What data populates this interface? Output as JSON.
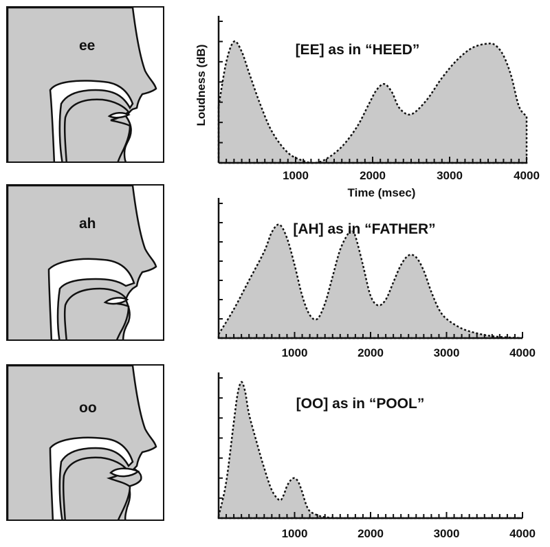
{
  "panels": [
    {
      "vowel": "ee",
      "title": "[EE] as in “HEED”"
    },
    {
      "vowel": "ah",
      "title": "[AH] as in “FATHER”"
    },
    {
      "vowel": "oo",
      "title": "[OO] as in “POOL”"
    }
  ],
  "colors": {
    "fill": "#c9c9c9",
    "stroke": "#111111"
  },
  "chart_data": [
    {
      "type": "area",
      "title": "[EE] as in “HEED”",
      "xlabel": "Time (msec)",
      "ylabel": "Loudness (dB)",
      "xticks": [
        "1000",
        "2000",
        "3000",
        "4000"
      ],
      "xlim": [
        0,
        4000
      ],
      "ylim": [
        0,
        7
      ],
      "x": [
        0,
        100,
        200,
        300,
        400,
        550,
        700,
        900,
        1100,
        1250,
        1400,
        1600,
        1800,
        1950,
        2050,
        2150,
        2250,
        2350,
        2500,
        2700,
        2900,
        3100,
        3300,
        3500,
        3600,
        3700,
        3800,
        3900,
        4000
      ],
      "values": [
        2.8,
        5.0,
        6.0,
        5.5,
        4.4,
        2.8,
        1.5,
        0.5,
        0.1,
        0.0,
        0.2,
        0.8,
        1.8,
        2.9,
        3.6,
        3.9,
        3.5,
        2.7,
        2.4,
        3.1,
        4.2,
        5.1,
        5.7,
        5.9,
        5.8,
        5.3,
        4.3,
        2.8,
        2.3
      ]
    },
    {
      "type": "area",
      "title": "[AH] as in “FATHER”",
      "xticks": [
        "1000",
        "2000",
        "3000",
        "4000"
      ],
      "xlim": [
        0,
        4000
      ],
      "ylim": [
        0,
        7
      ],
      "x": [
        0,
        200,
        400,
        600,
        700,
        800,
        900,
        1000,
        1100,
        1200,
        1300,
        1400,
        1500,
        1600,
        1700,
        1750,
        1800,
        1900,
        2000,
        2100,
        2200,
        2300,
        2400,
        2500,
        2600,
        2700,
        2800,
        2900,
        3000,
        3200,
        3400,
        3600,
        3800,
        4000
      ],
      "values": [
        0.2,
        1.5,
        3.0,
        4.5,
        5.5,
        5.9,
        5.2,
        3.8,
        2.2,
        1.2,
        1.0,
        1.8,
        3.2,
        4.6,
        5.4,
        5.6,
        5.3,
        3.8,
        2.2,
        1.7,
        2.0,
        2.9,
        3.8,
        4.3,
        4.2,
        3.5,
        2.4,
        1.5,
        1.0,
        0.5,
        0.25,
        0.1,
        0.04,
        0.0
      ]
    },
    {
      "type": "area",
      "title": "[OO] as in “POOL”",
      "xticks": [
        "1000",
        "2000",
        "3000",
        "4000"
      ],
      "xlim": [
        0,
        4000
      ],
      "ylim": [
        0,
        7
      ],
      "x": [
        0,
        100,
        200,
        250,
        300,
        350,
        400,
        500,
        600,
        700,
        800,
        850,
        900,
        950,
        1000,
        1050,
        1100,
        1150,
        1200,
        1300,
        1400,
        1600,
        2000,
        2500,
        3000,
        3500,
        4000
      ],
      "values": [
        0.1,
        1.8,
        4.8,
        6.2,
        6.8,
        6.3,
        5.2,
        3.8,
        2.5,
        1.4,
        0.9,
        1.1,
        1.6,
        1.9,
        2.0,
        1.8,
        1.3,
        0.7,
        0.35,
        0.15,
        0.05,
        0.0,
        0.0,
        0.0,
        0.0,
        0.0,
        0.0
      ]
    }
  ]
}
